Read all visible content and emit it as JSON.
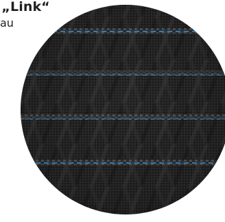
{
  "caption": {
    "title": "g „Link“",
    "subtitle": "au"
  },
  "swatch": {
    "icon": "fabric-swatch",
    "colors": {
      "base": "#262626",
      "weave_dark": "#1a1a1a",
      "weave_light": "#3b3b3b",
      "stitch_blue": "#3d88c4",
      "stitch_grey": "#8a8a8a"
    }
  }
}
